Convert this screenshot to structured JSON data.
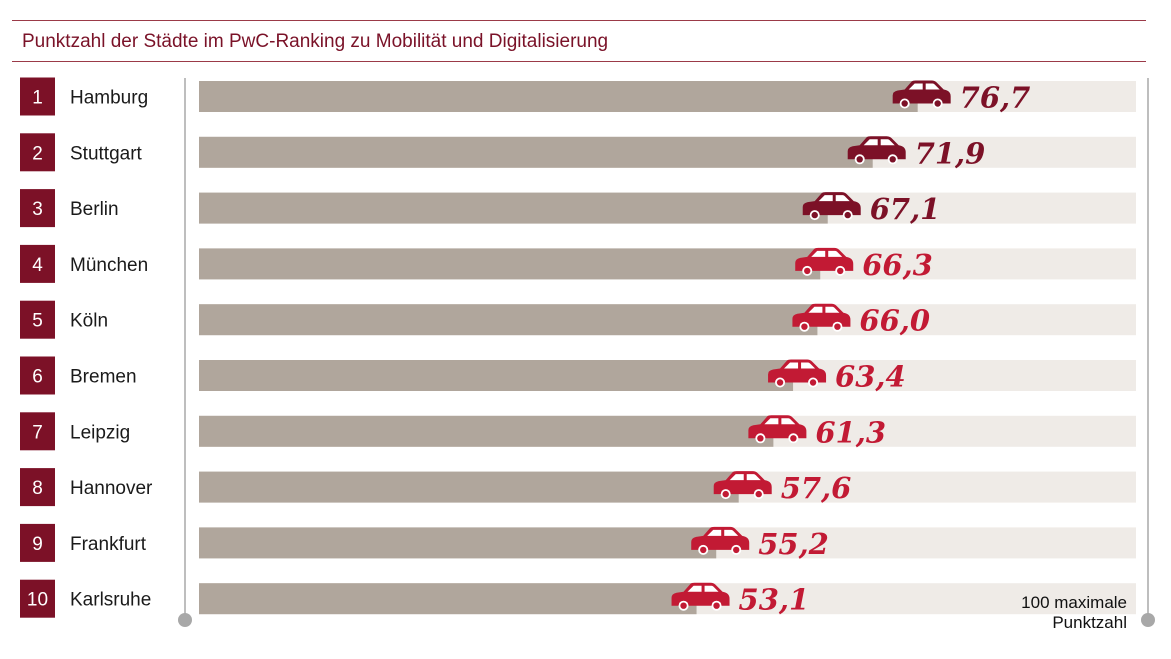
{
  "title": "Punktzahl der Städte im PwC-Ranking zu Mobilität und Digitalisierung",
  "colors": {
    "accent": "#7c1127",
    "bar_fill": "#b0a69c",
    "bar_track": "#efebe7",
    "car_dark": "#7c1127",
    "car_red": "#c21a34",
    "value_dark": "#7c1127",
    "value_red": "#c21a34",
    "rule": "#9b3a48",
    "axis": "#a8a8a8"
  },
  "icon": "car-icon",
  "chart_data": {
    "type": "bar",
    "orientation": "horizontal",
    "title": "Punktzahl der Städte im PwC-Ranking zu Mobilität und Digitalisierung",
    "categories": [
      "Hamburg",
      "Stuttgart",
      "Berlin",
      "München",
      "Köln",
      "Bremen",
      "Leipzig",
      "Hannover",
      "Frankfurt",
      "Karlsruhe"
    ],
    "ranks": [
      "1",
      "2",
      "3",
      "4",
      "5",
      "6",
      "7",
      "8",
      "9",
      "10"
    ],
    "values": [
      76.7,
      71.9,
      67.1,
      66.3,
      66.0,
      63.4,
      61.3,
      57.6,
      55.2,
      53.1
    ],
    "value_labels": [
      "76,7",
      "71,9",
      "67,1",
      "66,3",
      "66,0",
      "63,4",
      "61,3",
      "57,6",
      "55,2",
      "53,1"
    ],
    "highlight_top": 3,
    "xlim": [
      0,
      100
    ],
    "max_note": [
      "100 maximale",
      "Punktzahl"
    ]
  }
}
